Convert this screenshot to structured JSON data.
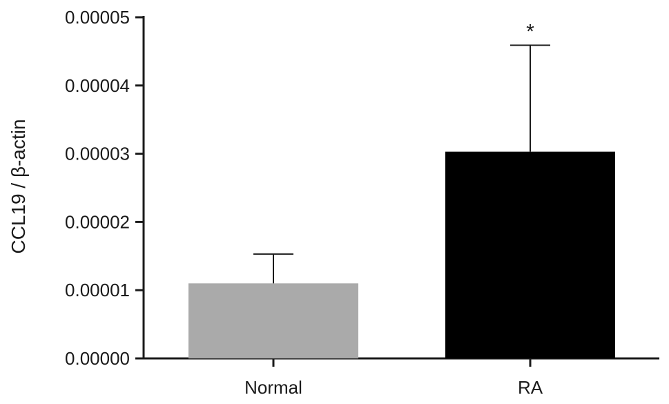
{
  "chart_data": {
    "type": "bar",
    "title": "",
    "xlabel": "",
    "ylabel": "CCL19 / β-actin",
    "categories": [
      "Normal",
      "RA"
    ],
    "values": [
      1.1e-05,
      3.03e-05
    ],
    "error_upper": [
      1.53e-05,
      4.59e-05
    ],
    "bar_colors": [
      "#aaaaaa",
      "#000000"
    ],
    "ylim": [
      0,
      5e-05
    ],
    "yticks": [
      0,
      1e-05,
      2e-05,
      3e-05,
      4e-05,
      5e-05
    ],
    "ytick_labels": [
      "0.00000",
      "0.00001",
      "0.00002",
      "0.00003",
      "0.00004",
      "0.00005"
    ],
    "annotations": [
      {
        "category": "RA",
        "text": "*"
      }
    ],
    "grid": false,
    "legend": "none"
  }
}
